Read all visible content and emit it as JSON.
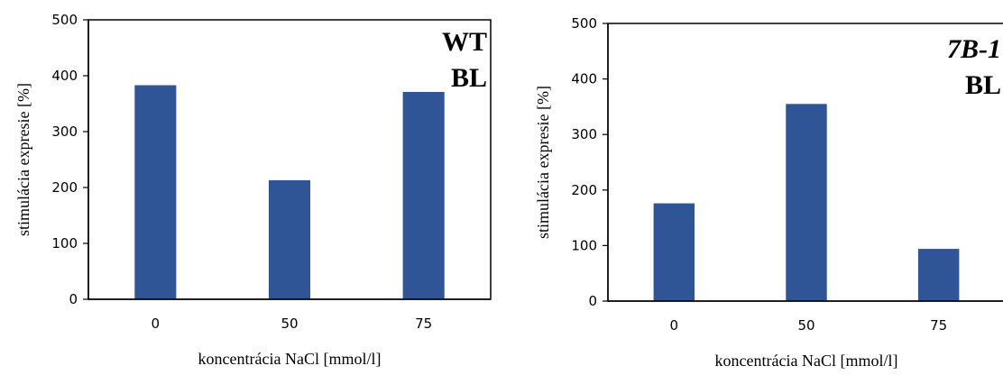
{
  "chart_data": [
    {
      "type": "bar",
      "categories": [
        "0",
        "50",
        "75"
      ],
      "values": [
        383,
        213,
        371
      ],
      "yticks": [
        "0",
        "100",
        "200",
        "300",
        "400",
        "500"
      ],
      "ylim": [
        0,
        500
      ],
      "xlabel": "koncentrácia NaCl [mmol/l]",
      "ylabel": "stimulácia expresie [%]",
      "annotation_lines": [
        "WT",
        "BL"
      ],
      "annotation_italic": false,
      "bar_color": "#2f5597",
      "grid": false
    },
    {
      "type": "bar",
      "categories": [
        "0",
        "50",
        "75"
      ],
      "values": [
        176,
        355,
        94
      ],
      "yticks": [
        "0",
        "100",
        "200",
        "300",
        "400",
        "500"
      ],
      "ylim": [
        0,
        500
      ],
      "xlabel": "koncentrácia NaCl [mmol/l]",
      "ylabel": "stimulácia expresie [%]",
      "annotation_lines": [
        "7B-1",
        "BL"
      ],
      "annotation_italic": true,
      "bar_color": "#2f5597",
      "grid": false
    }
  ]
}
